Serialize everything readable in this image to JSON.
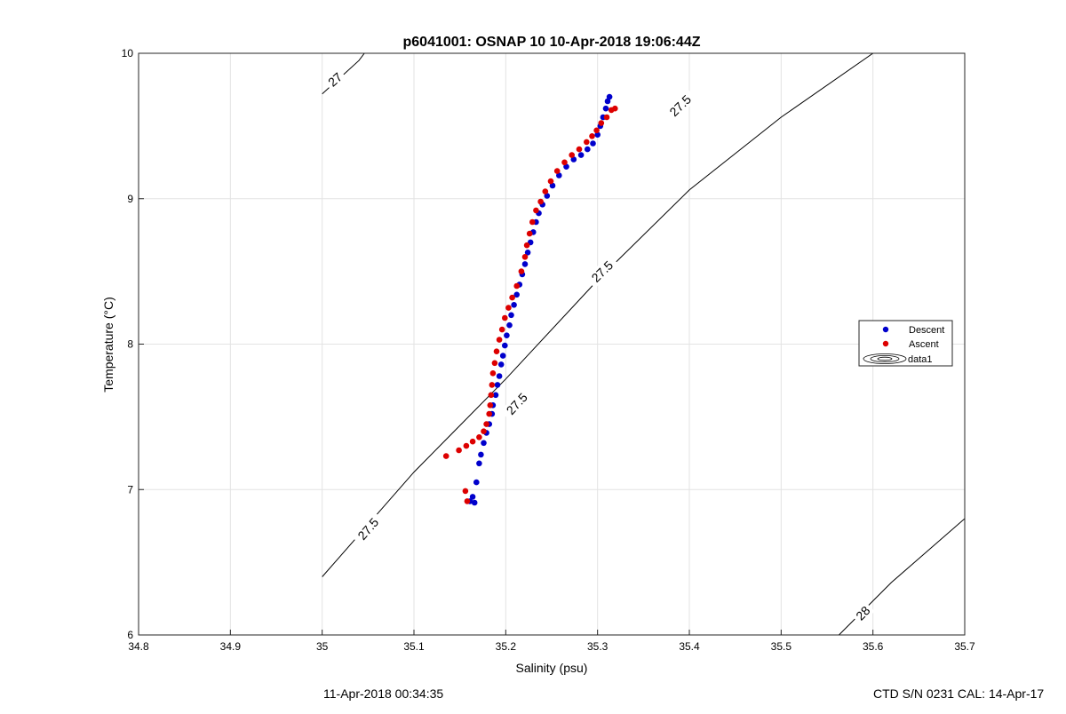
{
  "chart_data": {
    "type": "scatter",
    "title": "p6041001: OSNAP 10 10-Apr-2018 19:06:44Z",
    "xlabel": "Salinity (psu)",
    "ylabel": "Temperature (°C)",
    "xlim": [
      34.8,
      35.7
    ],
    "ylim": [
      6,
      10
    ],
    "xticks": [
      34.8,
      34.9,
      35,
      35.1,
      35.2,
      35.3,
      35.4,
      35.5,
      35.6,
      35.7
    ],
    "xtick_labels": [
      "34.8",
      "34.9",
      "35",
      "35.1",
      "35.2",
      "35.3",
      "35.4",
      "35.5",
      "35.6",
      "35.7"
    ],
    "yticks": [
      6,
      7,
      8,
      9,
      10
    ],
    "ytick_labels": [
      "6",
      "7",
      "8",
      "9",
      "10"
    ],
    "grid": true,
    "legend_position": "right",
    "series": [
      {
        "name": "Descent",
        "color": "#0000cc",
        "marker": "point",
        "points": [
          [
            35.166,
            6.91
          ],
          [
            35.161,
            6.92
          ],
          [
            35.164,
            6.95
          ],
          [
            35.168,
            7.05
          ],
          [
            35.171,
            7.18
          ],
          [
            35.173,
            7.24
          ],
          [
            35.176,
            7.32
          ],
          [
            35.179,
            7.39
          ],
          [
            35.182,
            7.45
          ],
          [
            35.185,
            7.52
          ],
          [
            35.186,
            7.58
          ],
          [
            35.189,
            7.65
          ],
          [
            35.191,
            7.72
          ],
          [
            35.193,
            7.78
          ],
          [
            35.195,
            7.86
          ],
          [
            35.197,
            7.92
          ],
          [
            35.199,
            7.99
          ],
          [
            35.201,
            8.06
          ],
          [
            35.204,
            8.13
          ],
          [
            35.206,
            8.2
          ],
          [
            35.209,
            8.27
          ],
          [
            35.212,
            8.34
          ],
          [
            35.215,
            8.41
          ],
          [
            35.218,
            8.48
          ],
          [
            35.221,
            8.55
          ],
          [
            35.224,
            8.63
          ],
          [
            35.227,
            8.7
          ],
          [
            35.23,
            8.77
          ],
          [
            35.233,
            8.84
          ],
          [
            35.236,
            8.9
          ],
          [
            35.24,
            8.96
          ],
          [
            35.245,
            9.02
          ],
          [
            35.251,
            9.09
          ],
          [
            35.258,
            9.16
          ],
          [
            35.266,
            9.22
          ],
          [
            35.274,
            9.27
          ],
          [
            35.282,
            9.3
          ],
          [
            35.289,
            9.34
          ],
          [
            35.295,
            9.38
          ],
          [
            35.3,
            9.44
          ],
          [
            35.303,
            9.5
          ],
          [
            35.306,
            9.56
          ],
          [
            35.309,
            9.62
          ],
          [
            35.311,
            9.67
          ],
          [
            35.313,
            9.7
          ]
        ]
      },
      {
        "name": "Ascent",
        "color": "#dd0000",
        "marker": "point",
        "points": [
          [
            35.158,
            6.92
          ],
          [
            35.156,
            6.99
          ],
          [
            35.135,
            7.23
          ],
          [
            35.149,
            7.27
          ],
          [
            35.157,
            7.3
          ],
          [
            35.164,
            7.33
          ],
          [
            35.171,
            7.36
          ],
          [
            35.176,
            7.4
          ],
          [
            35.179,
            7.45
          ],
          [
            35.182,
            7.52
          ],
          [
            35.183,
            7.58
          ],
          [
            35.184,
            7.65
          ],
          [
            35.185,
            7.72
          ],
          [
            35.186,
            7.8
          ],
          [
            35.188,
            7.87
          ],
          [
            35.19,
            7.95
          ],
          [
            35.193,
            8.03
          ],
          [
            35.196,
            8.1
          ],
          [
            35.199,
            8.18
          ],
          [
            35.203,
            8.25
          ],
          [
            35.207,
            8.32
          ],
          [
            35.212,
            8.4
          ],
          [
            35.217,
            8.5
          ],
          [
            35.221,
            8.6
          ],
          [
            35.223,
            8.68
          ],
          [
            35.226,
            8.76
          ],
          [
            35.229,
            8.84
          ],
          [
            35.233,
            8.92
          ],
          [
            35.238,
            8.98
          ],
          [
            35.243,
            9.05
          ],
          [
            35.249,
            9.12
          ],
          [
            35.256,
            9.19
          ],
          [
            35.264,
            9.25
          ],
          [
            35.272,
            9.3
          ],
          [
            35.28,
            9.34
          ],
          [
            35.288,
            9.39
          ],
          [
            35.294,
            9.43
          ],
          [
            35.299,
            9.47
          ],
          [
            35.304,
            9.52
          ],
          [
            35.31,
            9.56
          ],
          [
            35.315,
            9.61
          ],
          [
            35.319,
            9.62
          ]
        ]
      }
    ],
    "contours": [
      {
        "label": "27",
        "label_positions": [
          [
            35.014,
            9.82
          ]
        ],
        "path": [
          [
            35.0,
            9.72
          ],
          [
            35.04,
            9.95
          ],
          [
            35.046,
            10.0
          ]
        ]
      },
      {
        "label": "27.5",
        "label_positions": [
          [
            35.39,
            9.64
          ],
          [
            35.305,
            8.5
          ],
          [
            35.212,
            7.59
          ],
          [
            35.05,
            6.73
          ]
        ],
        "path": [
          [
            35.0,
            6.4
          ],
          [
            35.1,
            7.12
          ],
          [
            35.2,
            7.76
          ],
          [
            35.3,
            8.44
          ],
          [
            35.4,
            9.06
          ],
          [
            35.5,
            9.56
          ],
          [
            35.6,
            10.0
          ],
          [
            35.7,
            10.0
          ]
        ]
      },
      {
        "label": "28",
        "label_positions": [
          [
            35.589,
            6.15
          ]
        ],
        "path": [
          [
            35.563,
            6.0
          ],
          [
            35.62,
            6.36
          ],
          [
            35.7,
            6.8
          ]
        ]
      }
    ],
    "legend_extra": "data1"
  },
  "footer": {
    "left": "11-Apr-2018 00:34:35",
    "right": "CTD S/N 0231  CAL: 14-Apr-17"
  }
}
